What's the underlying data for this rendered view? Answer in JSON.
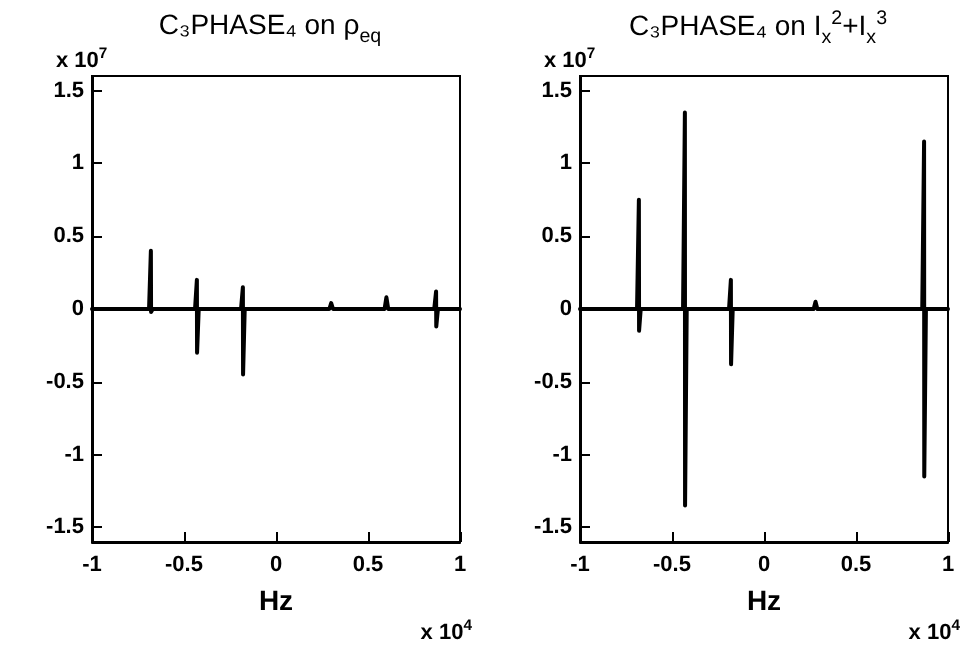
{
  "chart_data": [
    {
      "type": "line",
      "title": "C₃PHASE₄ on ρ$_{eq}$",
      "xlabel": "Hz",
      "annotations": [
        "x 10$^{7}$",
        "x 10$^{4}$"
      ],
      "series": [
        {
          "color": "#000000",
          "x": [
            -1,
            -0.69,
            -0.68,
            -0.679,
            -0.67,
            -0.44,
            -0.43,
            -0.429,
            -0.42,
            -0.19,
            -0.18,
            -0.179,
            -0.17,
            0.29,
            0.3,
            0.31,
            0.59,
            0.6,
            0.61,
            0.86,
            0.87,
            0.871,
            0.88,
            1
          ],
          "values": [
            0,
            0,
            0.4,
            -0.02,
            0,
            0,
            0.2,
            -0.3,
            0,
            0,
            0.15,
            -0.45,
            0,
            0,
            0.04,
            0,
            0,
            0.08,
            0,
            0,
            0.12,
            -0.12,
            0,
            0
          ]
        }
      ],
      "xlim": [
        -1,
        1
      ],
      "xticks": [
        -1,
        -0.5,
        0,
        0.5,
        1
      ],
      "ylim": [
        -1.6,
        1.6
      ],
      "yticks": [
        -1.5,
        -1,
        -0.5,
        0,
        0.5,
        1,
        1.5
      ],
      "grid": false,
      "marker": "none",
      "line_style": "solid"
    },
    {
      "type": "line",
      "title": "C₃PHASE₄ on I$_{x}$$^{2}$+I$_{x}$$^{3}$",
      "xlabel": "Hz",
      "annotations": [
        "x 10$^{7}$",
        "x 10$^{4}$"
      ],
      "series": [
        {
          "color": "#000000",
          "x": [
            -1,
            -0.69,
            -0.68,
            -0.679,
            -0.67,
            -0.44,
            -0.43,
            -0.429,
            -0.42,
            -0.19,
            -0.18,
            -0.179,
            -0.17,
            0.27,
            0.28,
            0.29,
            0.86,
            0.87,
            0.871,
            0.88,
            1
          ],
          "values": [
            0,
            0,
            0.75,
            -0.15,
            0,
            0,
            1.35,
            -1.35,
            0,
            0,
            0.2,
            -0.38,
            0,
            0,
            0.05,
            0,
            0,
            1.15,
            -1.15,
            0,
            0
          ]
        }
      ],
      "xlim": [
        -1,
        1
      ],
      "xticks": [
        -1,
        -0.5,
        0,
        0.5,
        1
      ],
      "ylim": [
        -1.6,
        1.6
      ],
      "yticks": [
        -1.5,
        -1,
        -0.5,
        0,
        0.5,
        1,
        1.5
      ],
      "grid": false,
      "marker": "none",
      "line_style": "solid"
    }
  ]
}
